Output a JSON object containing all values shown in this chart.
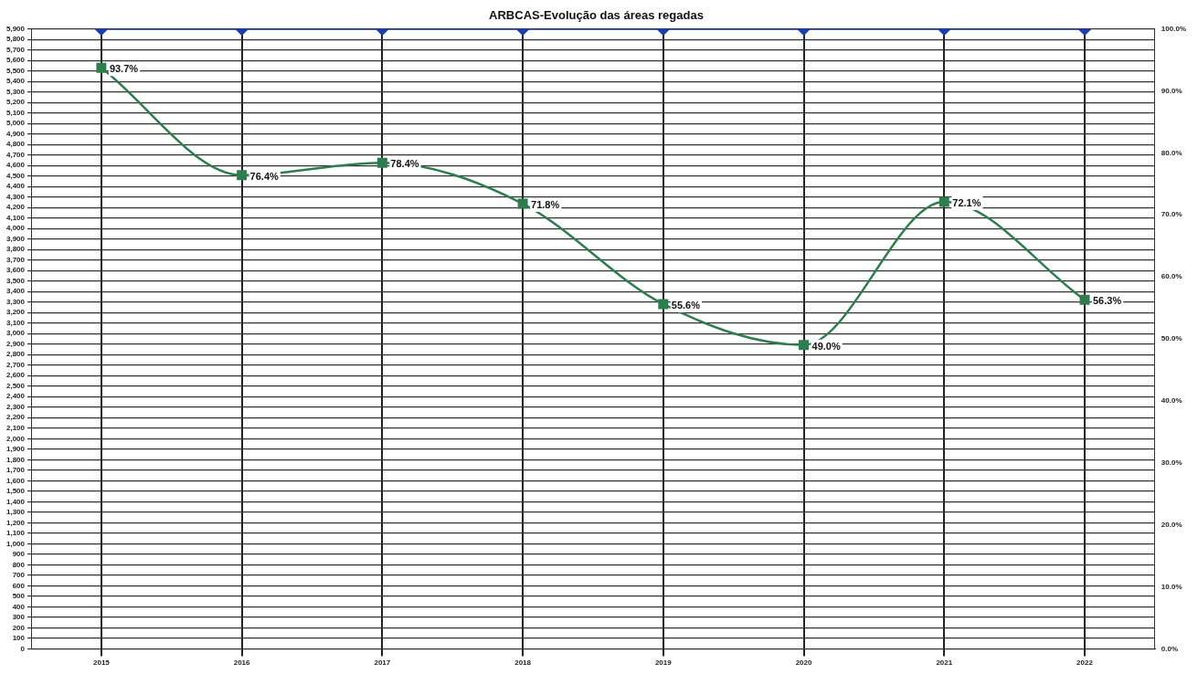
{
  "chart_data": {
    "type": "line",
    "title": "ARBCAS-Evolução das áreas regadas",
    "categories": [
      "2015",
      "2016",
      "2017",
      "2018",
      "2019",
      "2020",
      "2021",
      "2022"
    ],
    "series": [
      {
        "color": "#1f3fa8",
        "values": [
          5900,
          5900,
          5900,
          5900,
          5900,
          5900,
          5900,
          5900
        ],
        "marker": "diamond"
      },
      {
        "color": "#2e7d4f",
        "axis": "y2",
        "marker": "square",
        "values": [
          93.7,
          76.4,
          78.4,
          71.8,
          55.6,
          49.0,
          72.1,
          56.3
        ],
        "value_labels": [
          "93.7%",
          "76.4%",
          "78.4%",
          "71.8%",
          "55.6%",
          "49.0%",
          "72.1%",
          "56.3%"
        ]
      }
    ],
    "ylim": [
      0,
      5900
    ],
    "yticks": [
      0,
      100,
      200,
      300,
      400,
      500,
      600,
      700,
      800,
      900,
      {
        "value": 1000,
        "label": "1,000"
      },
      {
        "value": 1100,
        "label": "1,100"
      },
      {
        "value": 1200,
        "label": "1,200"
      },
      {
        "value": 1300,
        "label": "1,300"
      },
      {
        "value": 1400,
        "label": "1,400"
      },
      {
        "value": 1500,
        "label": "1,500"
      },
      {
        "value": 1600,
        "label": "1,600"
      },
      {
        "value": 1700,
        "label": "1,700"
      },
      {
        "value": 1800,
        "label": "1,800"
      },
      {
        "value": 1900,
        "label": "1,900"
      },
      {
        "value": 2000,
        "label": "2,000"
      },
      {
        "value": 2100,
        "label": "2,100"
      },
      {
        "value": 2200,
        "label": "2,200"
      },
      {
        "value": 2300,
        "label": "2,300"
      },
      {
        "value": 2400,
        "label": "2,400"
      },
      {
        "value": 2500,
        "label": "2,500"
      },
      {
        "value": 2600,
        "label": "2,600"
      },
      {
        "value": 2700,
        "label": "2,700"
      },
      {
        "value": 2800,
        "label": "2,800"
      },
      {
        "value": 2900,
        "label": "2,900"
      },
      {
        "value": 3000,
        "label": "3,000"
      },
      {
        "value": 3100,
        "label": "3,100"
      },
      {
        "value": 3200,
        "label": "3,200"
      },
      {
        "value": 3300,
        "label": "3,300"
      },
      {
        "value": 3400,
        "label": "3,400"
      },
      {
        "value": 3500,
        "label": "3,500"
      },
      {
        "value": 3600,
        "label": "3,600"
      },
      {
        "value": 3700,
        "label": "3,700"
      },
      {
        "value": 3800,
        "label": "3,800"
      },
      {
        "value": 3900,
        "label": "3,900"
      },
      {
        "value": 4000,
        "label": "4,000"
      },
      {
        "value": 4100,
        "label": "4,100"
      },
      {
        "value": 4200,
        "label": "4,200"
      },
      {
        "value": 4300,
        "label": "4,300"
      },
      {
        "value": 4400,
        "label": "4,400"
      },
      {
        "value": 4500,
        "label": "4,500"
      },
      {
        "value": 4600,
        "label": "4,600"
      },
      {
        "value": 4700,
        "label": "4,700"
      },
      {
        "value": 4800,
        "label": "4,800"
      },
      {
        "value": 4900,
        "label": "4,900"
      },
      {
        "value": 5000,
        "label": "5,000"
      },
      {
        "value": 5100,
        "label": "5,100"
      },
      {
        "value": 5200,
        "label": "5,200"
      },
      {
        "value": 5300,
        "label": "5,300"
      },
      {
        "value": 5400,
        "label": "5,400"
      },
      {
        "value": 5500,
        "label": "5,500"
      },
      {
        "value": 5600,
        "label": "5,600"
      },
      {
        "value": 5700,
        "label": "5,700"
      },
      {
        "value": 5800,
        "label": "5,800"
      },
      {
        "value": 5900,
        "label": "5,900"
      }
    ],
    "y2lim": [
      0,
      100
    ],
    "y2ticks": [
      {
        "value": 0,
        "label": "0.0%"
      },
      {
        "value": 10,
        "label": "10.0%"
      },
      {
        "value": 20,
        "label": "20.0%"
      },
      {
        "value": 30,
        "label": "30.0%"
      },
      {
        "value": 40,
        "label": "40.0%"
      },
      {
        "value": 50,
        "label": "50.0%"
      },
      {
        "value": 60,
        "label": "60.0%"
      },
      {
        "value": 70,
        "label": "70.0%"
      },
      {
        "value": 80,
        "label": "80.0%"
      },
      {
        "value": 90,
        "label": "90.0%"
      },
      {
        "value": 100,
        "label": "100.0%"
      }
    ],
    "grid": true,
    "legend": false
  }
}
